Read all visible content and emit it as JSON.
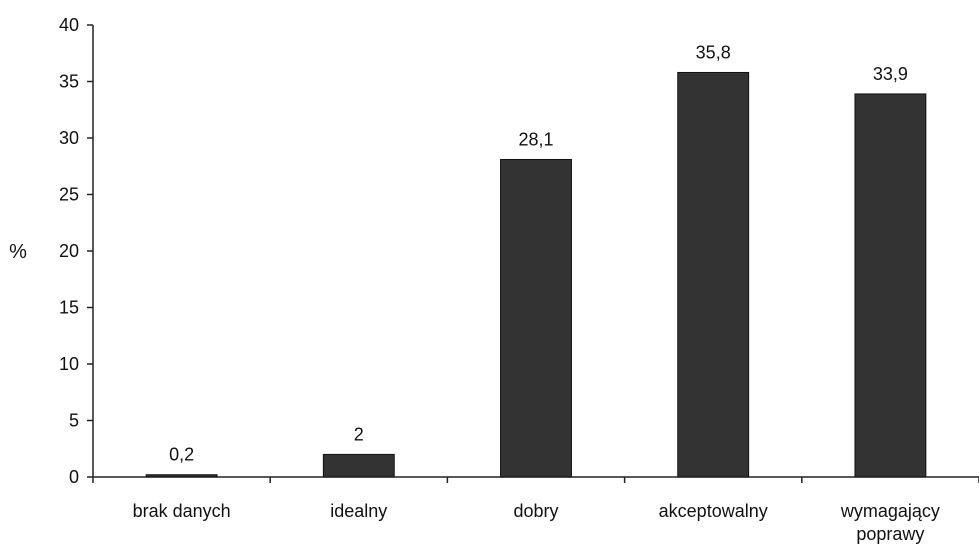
{
  "chart_data": {
    "type": "bar",
    "categories": [
      [
        "brak danych"
      ],
      [
        "idealny"
      ],
      [
        "dobry"
      ],
      [
        "akceptowalny"
      ],
      [
        "wymagający",
        "poprawy"
      ]
    ],
    "values": [
      0.2,
      2,
      28.1,
      35.8,
      33.9
    ],
    "value_labels": [
      "0,2",
      "2",
      "28,1",
      "35,8",
      "33,9"
    ],
    "ylabel": "%",
    "xlabel": "",
    "title": "",
    "ylim": [
      0,
      40
    ],
    "yticks": [
      0,
      5,
      10,
      15,
      20,
      25,
      30,
      35,
      40
    ],
    "grid": false,
    "legend": "none",
    "bar_color": "#333333"
  }
}
